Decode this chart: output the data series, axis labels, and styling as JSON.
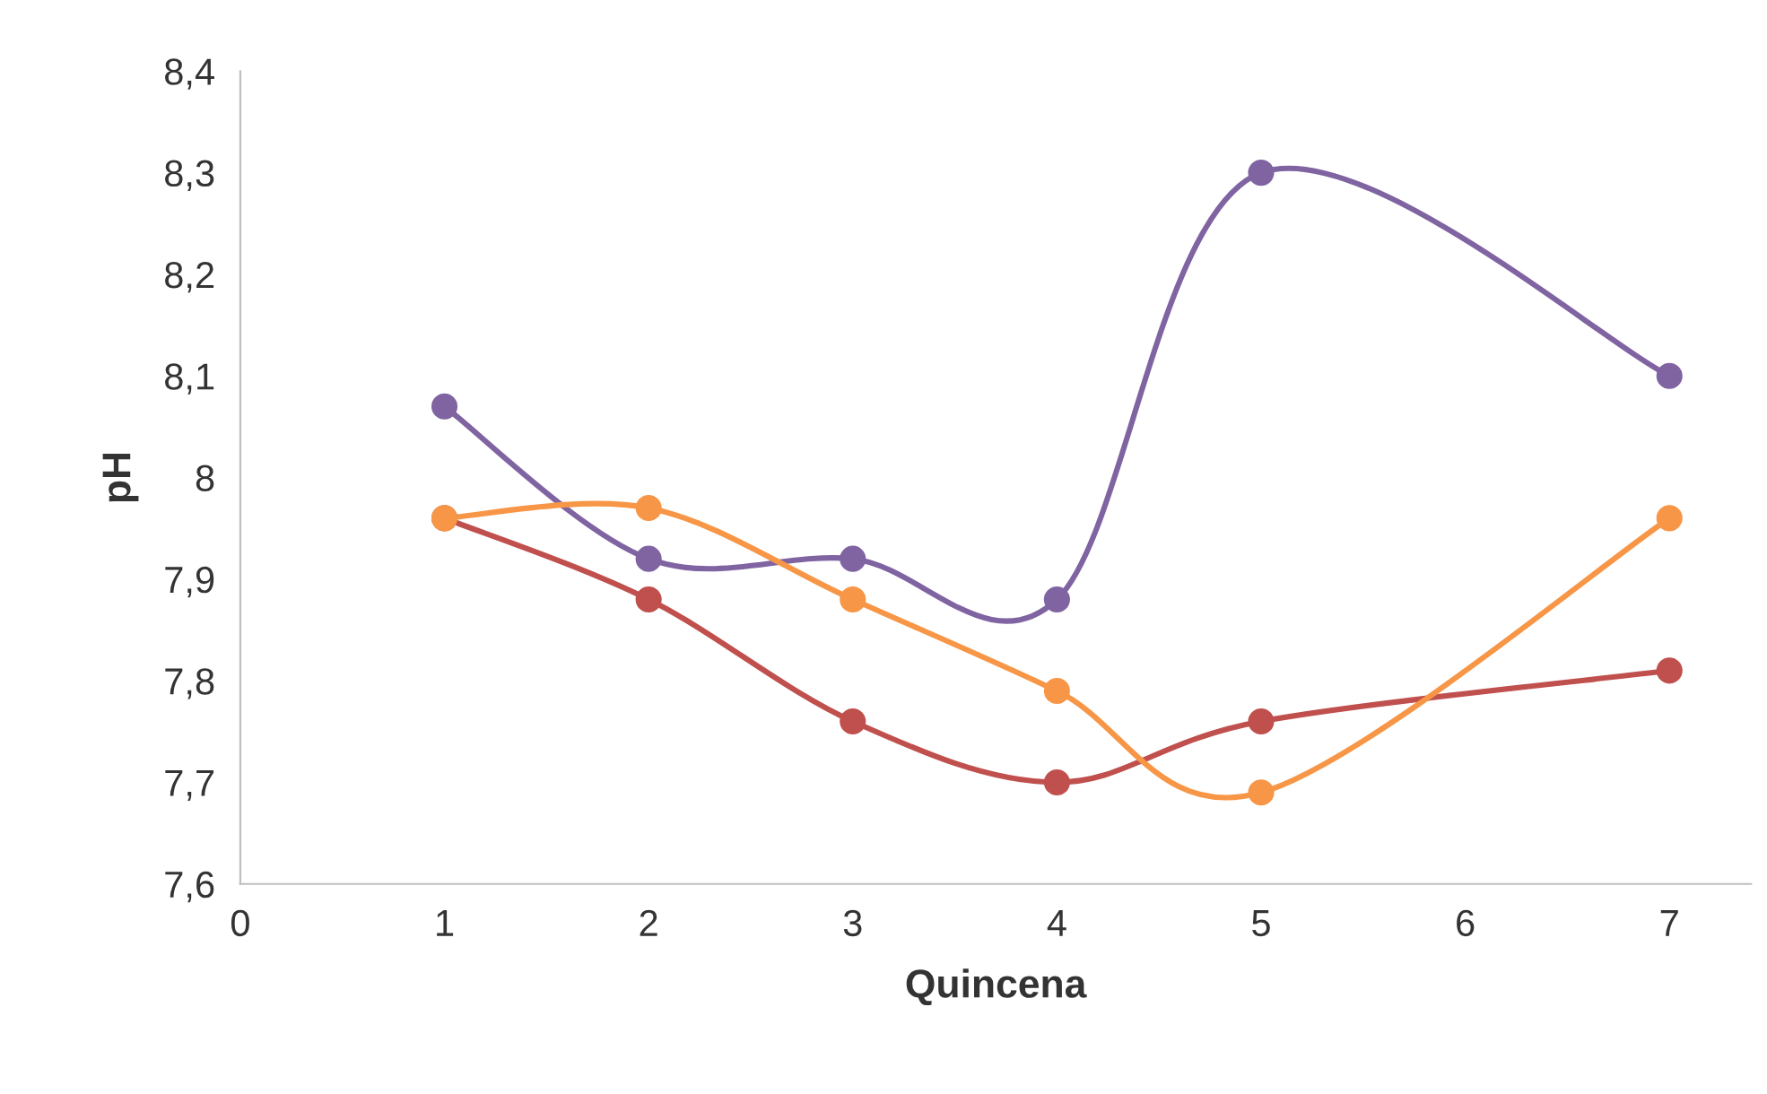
{
  "chart_data": {
    "type": "line",
    "xlabel": "Quincena",
    "ylabel": "pH",
    "x": [
      1,
      2,
      3,
      4,
      5,
      7
    ],
    "series": [
      {
        "color": "#8064a2",
        "values": [
          8.07,
          7.92,
          7.92,
          7.88,
          8.3,
          8.1
        ]
      },
      {
        "color": "#c0504d",
        "values": [
          7.96,
          7.88,
          7.76,
          7.7,
          7.76,
          7.81
        ]
      },
      {
        "color": "#f79646",
        "values": [
          7.96,
          7.97,
          7.88,
          7.79,
          7.69,
          7.96
        ]
      }
    ],
    "xlim": [
      0,
      7.4
    ],
    "ylim": [
      7.6,
      8.4
    ],
    "xticks": [
      0,
      1,
      2,
      3,
      4,
      5,
      6,
      7
    ],
    "yticks": [
      {
        "value": 7.6,
        "label": "7,6"
      },
      {
        "value": 7.7,
        "label": "7,7"
      },
      {
        "value": 7.8,
        "label": "7,8"
      },
      {
        "value": 7.9,
        "label": "7,9"
      },
      {
        "value": 8,
        "label": "8"
      },
      {
        "value": 8.1,
        "label": "8,1"
      },
      {
        "value": 8.2,
        "label": "8,2"
      },
      {
        "value": 8.3,
        "label": "8,3"
      },
      {
        "value": 8.4,
        "label": "8,4"
      }
    ],
    "grid": false,
    "legend": false,
    "marker": "circle",
    "line_style": "solid"
  }
}
